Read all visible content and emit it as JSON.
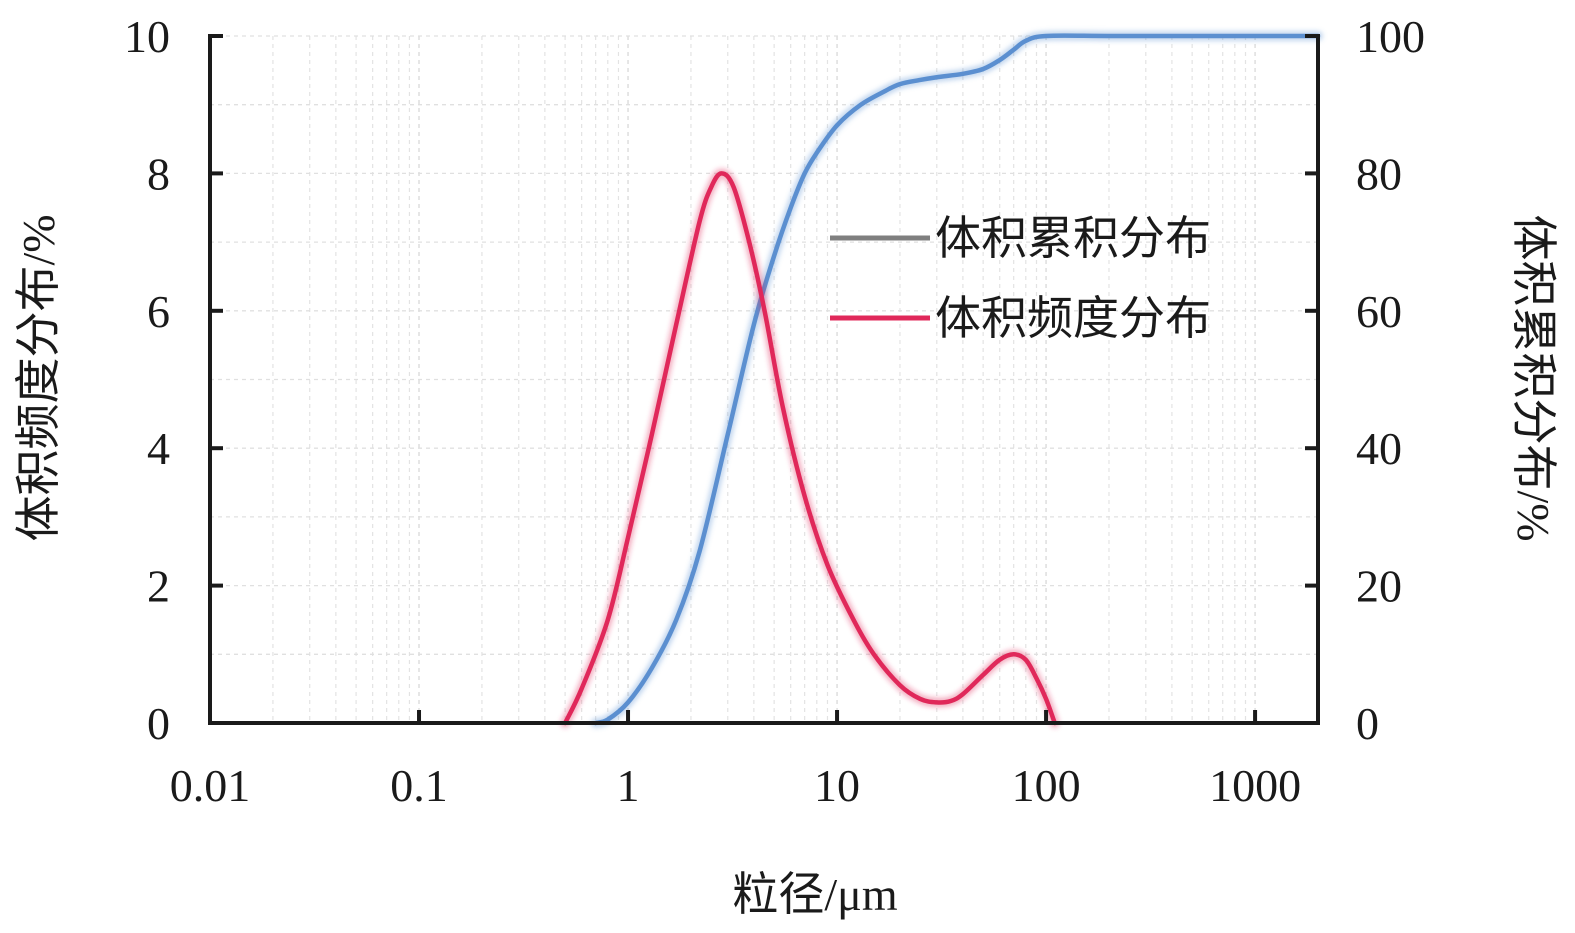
{
  "chart_data": {
    "type": "line",
    "title": "",
    "xlabel": "粒径/μm",
    "ylabel_left": "体积频度分布/%",
    "ylabel_right": "体积累积分布/%",
    "x_scale": "log",
    "xlim": [
      0.01,
      2000
    ],
    "ylim_left": [
      0,
      10
    ],
    "ylim_right": [
      0,
      100
    ],
    "x_ticks": [
      0.01,
      0.1,
      1,
      10,
      100,
      1000
    ],
    "x_tick_labels": [
      "0.01",
      "0.1",
      "1",
      "10",
      "100",
      "1000"
    ],
    "y_left_ticks": [
      0,
      2,
      4,
      6,
      8,
      10
    ],
    "y_left_tick_labels": [
      "0",
      "2",
      "4",
      "6",
      "8",
      "10"
    ],
    "y_right_ticks": [
      0,
      20,
      40,
      60,
      80,
      100
    ],
    "y_right_tick_labels": [
      "0",
      "20",
      "40",
      "60",
      "80",
      "100"
    ],
    "grid": true,
    "legend_position": "upper-right",
    "series": [
      {
        "name": "体积累积分布",
        "axis": "right",
        "color": "#5b8fd0",
        "legend_color": "#7f7f7f",
        "x": [
          0.7,
          0.8,
          1.0,
          1.3,
          1.7,
          2.2,
          3.0,
          4.0,
          5.0,
          6.0,
          7.0,
          8.0,
          10.0,
          13.0,
          17.0,
          20.0,
          25.0,
          30.0,
          40.0,
          50.0,
          60.0,
          70.0,
          80.0,
          100.0,
          200.0,
          500.0,
          1000.0,
          2000.0
        ],
        "y": [
          0,
          0.5,
          3,
          8,
          15,
          25,
          42,
          58,
          68,
          75,
          80,
          83,
          87,
          90,
          92,
          93,
          93.6,
          94,
          94.5,
          95.2,
          96.5,
          98,
          99.3,
          100,
          100,
          100,
          100,
          100
        ]
      },
      {
        "name": "体积频度分布",
        "axis": "left",
        "color": "#e0285a",
        "legend_color": "#e0285a",
        "x": [
          0.5,
          0.6,
          0.8,
          1.0,
          1.3,
          1.7,
          2.2,
          2.5,
          2.8,
          3.2,
          3.8,
          4.5,
          5.5,
          7.0,
          9.0,
          12.0,
          15.0,
          20.0,
          25.0,
          30.0,
          35.0,
          40.0,
          50.0,
          60.0,
          70.0,
          80.0,
          90.0,
          100.0,
          110.0
        ],
        "y": [
          0,
          0.5,
          1.5,
          2.7,
          4.2,
          5.8,
          7.3,
          7.8,
          8.0,
          7.8,
          7.0,
          6.0,
          4.6,
          3.3,
          2.3,
          1.5,
          1.0,
          0.55,
          0.35,
          0.3,
          0.32,
          0.42,
          0.7,
          0.92,
          1.0,
          0.92,
          0.65,
          0.35,
          0
        ]
      }
    ]
  }
}
